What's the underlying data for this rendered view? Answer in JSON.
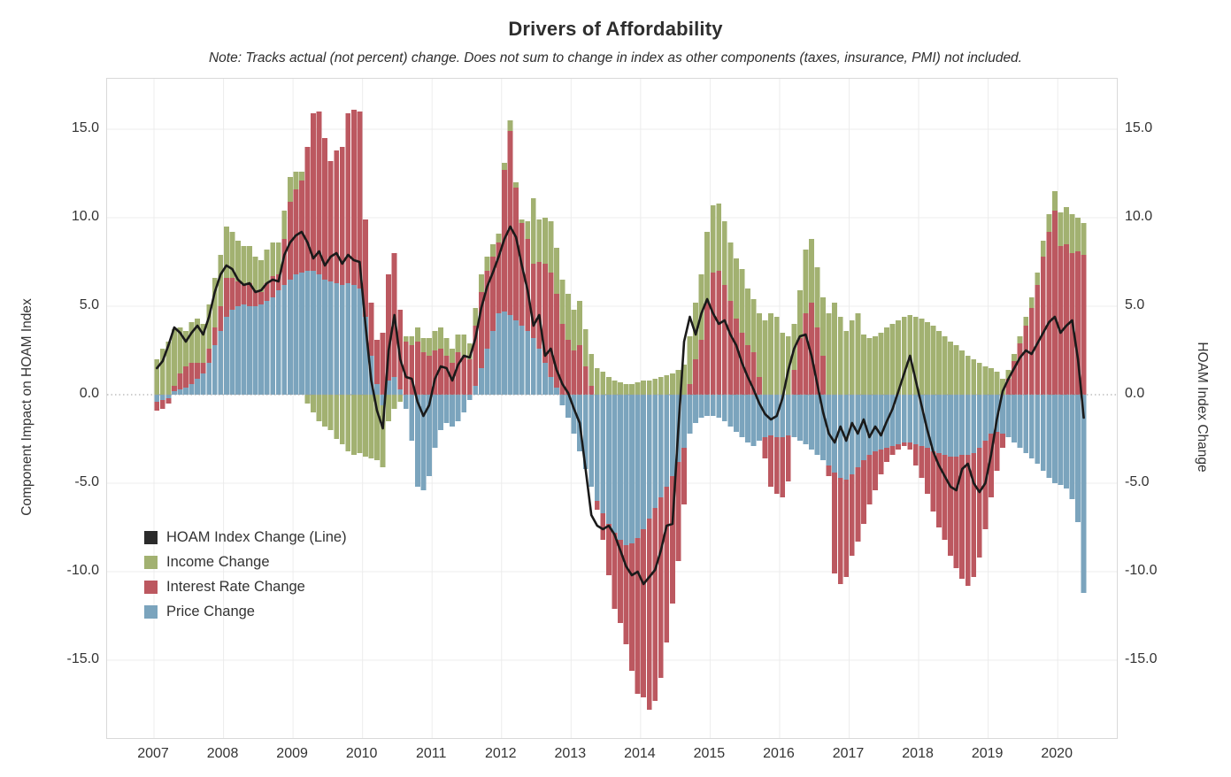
{
  "header": {
    "title": "Drivers of Affordability",
    "note": "Note: Tracks actual (not percent) change. Does not sum to change in index as other components (taxes, insurance, PMI) not included."
  },
  "axes": {
    "left_title": "Component Impact on HOAM Index",
    "right_title": "HOAM Index Change",
    "y_tick_labels": [
      "15.0",
      "10.0",
      "5.0",
      "0.0",
      "-5.0",
      "-10.0",
      "-15.0"
    ],
    "y_tick_values": [
      15,
      10,
      5,
      0,
      -5,
      -10,
      -15
    ],
    "x_year_labels": [
      "2007",
      "2008",
      "2009",
      "2010",
      "2011",
      "2012",
      "2013",
      "2014",
      "2015",
      "2016",
      "2017",
      "2018",
      "2019",
      "2020"
    ]
  },
  "legend": {
    "items": [
      {
        "label": "HOAM Index Change (Line)",
        "color": "#2b2b2b"
      },
      {
        "label": "Income Change",
        "color": "#a2b171"
      },
      {
        "label": "Interest Rate Change",
        "color": "#bc5860"
      },
      {
        "label": "Price Change",
        "color": "#7ba4bd"
      }
    ]
  },
  "chart_data": {
    "type": "bar",
    "subtype": "stacked-bars-with-line",
    "x_monthly_start": "2007-01",
    "x_monthly_end": "2020-05",
    "ylim": [
      -19.6,
      17.8
    ],
    "grid": true,
    "legend_position": "inside-left",
    "stack_order_from_zero": [
      "price",
      "interest",
      "income"
    ],
    "series": [
      {
        "name": "Income Change",
        "key": "income",
        "color": "#a2b171",
        "values": [
          2.0,
          2.6,
          3.0,
          3.2,
          2.6,
          2.0,
          2.3,
          2.5,
          2.2,
          2.5,
          2.8,
          2.9,
          2.9,
          2.6,
          2.3,
          2.2,
          2.1,
          1.9,
          1.8,
          1.9,
          1.9,
          1.8,
          1.6,
          1.4,
          1.0,
          0.5,
          -0.5,
          -1.0,
          -1.5,
          -1.8,
          -2.0,
          -2.5,
          -2.8,
          -3.2,
          -3.4,
          -3.3,
          -3.5,
          -3.6,
          -3.7,
          -3.5,
          -1.5,
          -0.8,
          -0.4,
          0.3,
          0.5,
          0.8,
          0.8,
          1.0,
          1.1,
          1.2,
          1.0,
          0.8,
          1.0,
          1.2,
          0.9,
          1.0,
          1.0,
          0.8,
          0.7,
          0.5,
          0.4,
          0.6,
          0.3,
          0.2,
          1.0,
          3.7,
          2.4,
          2.6,
          2.9,
          2.6,
          2.5,
          2.6,
          2.3,
          2.5,
          2.1,
          1.8,
          1.5,
          1.3,
          1.0,
          0.8,
          0.7,
          0.6,
          0.6,
          0.7,
          0.8,
          0.8,
          0.9,
          1.0,
          1.1,
          1.2,
          1.4,
          1.7,
          2.7,
          3.2,
          3.7,
          4.0,
          3.8,
          3.8,
          3.6,
          3.3,
          3.4,
          3.6,
          3.2,
          3.0,
          3.6,
          4.2,
          4.6,
          4.4,
          3.5,
          3.3,
          2.6,
          2.7,
          3.6,
          3.6,
          3.4,
          3.3,
          4.6,
          5.2,
          4.4,
          3.6,
          4.2,
          4.6,
          3.4,
          3.2,
          3.3,
          3.5,
          3.8,
          4.0,
          4.2,
          4.4,
          4.5,
          4.4,
          4.3,
          4.1,
          3.9,
          3.6,
          3.3,
          3.0,
          2.8,
          2.5,
          2.2,
          2.0,
          1.8,
          1.6,
          1.5,
          1.3,
          0.9,
          0.5,
          0.4,
          0.4,
          0.5,
          0.6,
          0.7,
          0.9,
          1.0,
          1.1,
          1.9,
          2.1,
          2.2,
          1.9,
          1.8
        ]
      },
      {
        "name": "Interest Rate Change",
        "key": "interest",
        "color": "#bc5860",
        "values": [
          -0.5,
          -0.5,
          -0.3,
          0.3,
          0.9,
          1.2,
          1.2,
          0.9,
          0.6,
          0.8,
          1.0,
          1.4,
          2.2,
          1.8,
          1.4,
          1.1,
          1.3,
          0.9,
          0.7,
          1.0,
          1.2,
          0.9,
          2.6,
          4.4,
          4.8,
          5.2,
          7.0,
          8.9,
          9.2,
          8.0,
          6.8,
          7.5,
          7.8,
          9.6,
          9.9,
          10.0,
          5.5,
          3.0,
          2.5,
          3.5,
          6.0,
          7.0,
          4.5,
          3.0,
          2.8,
          3.0,
          2.4,
          2.2,
          2.5,
          2.6,
          2.2,
          1.8,
          2.4,
          2.2,
          2.0,
          3.4,
          4.3,
          4.4,
          4.2,
          4.0,
          8.0,
          10.4,
          7.5,
          5.8,
          5.2,
          4.2,
          4.9,
          5.6,
          5.9,
          5.3,
          4.0,
          3.1,
          2.5,
          2.8,
          1.6,
          0.5,
          -0.5,
          -1.5,
          -2.9,
          -4.3,
          -4.7,
          -5.6,
          -7.2,
          -8.8,
          -9.5,
          -10.8,
          -10.9,
          -10.2,
          -8.8,
          -7.2,
          -5.6,
          -3.2,
          0.6,
          2.0,
          3.1,
          5.2,
          6.9,
          7.0,
          6.2,
          5.3,
          4.3,
          3.5,
          2.8,
          2.4,
          1.0,
          -1.2,
          -2.9,
          -3.2,
          -3.4,
          -2.6,
          1.4,
          3.2,
          4.6,
          5.2,
          3.8,
          2.2,
          -0.6,
          -5.7,
          -6.0,
          -5.5,
          -4.6,
          -4.2,
          -3.6,
          -2.8,
          -2.2,
          -1.4,
          -0.8,
          -0.5,
          -0.3,
          -0.2,
          -0.4,
          -1.2,
          -1.8,
          -2.6,
          -3.4,
          -4.2,
          -4.8,
          -5.6,
          -6.3,
          -7.0,
          -7.4,
          -7.0,
          -6.2,
          -5.0,
          -3.6,
          -2.2,
          -0.8,
          0.9,
          1.9,
          2.9,
          3.9,
          4.9,
          6.2,
          7.8,
          9.2,
          10.4,
          8.4,
          8.5,
          8.0,
          8.1,
          7.9
        ]
      },
      {
        "name": "Price Change",
        "key": "price",
        "color": "#7ba4bd",
        "values": [
          -0.4,
          -0.3,
          -0.2,
          0.2,
          0.3,
          0.4,
          0.6,
          0.9,
          1.2,
          1.8,
          2.8,
          3.6,
          4.4,
          4.8,
          5.0,
          5.1,
          5.0,
          5.0,
          5.1,
          5.3,
          5.5,
          5.9,
          6.2,
          6.5,
          6.8,
          6.9,
          7.0,
          7.0,
          6.8,
          6.5,
          6.4,
          6.3,
          6.2,
          6.3,
          6.2,
          6.0,
          4.4,
          2.2,
          0.6,
          -0.6,
          0.8,
          1.0,
          0.3,
          -0.8,
          -2.6,
          -5.2,
          -5.4,
          -4.6,
          -3.0,
          -2.0,
          -1.6,
          -1.8,
          -1.5,
          -1.0,
          -0.3,
          0.5,
          1.5,
          2.6,
          3.6,
          4.6,
          4.7,
          4.5,
          4.2,
          3.9,
          3.6,
          3.2,
          2.6,
          1.8,
          1.0,
          0.4,
          -0.6,
          -1.3,
          -2.2,
          -3.2,
          -4.2,
          -5.2,
          -6.0,
          -6.7,
          -7.3,
          -7.8,
          -8.2,
          -8.5,
          -8.4,
          -8.1,
          -7.6,
          -7.0,
          -6.4,
          -5.8,
          -5.2,
          -4.6,
          -3.8,
          -3.0,
          -2.2,
          -1.6,
          -1.3,
          -1.2,
          -1.2,
          -1.3,
          -1.5,
          -1.8,
          -2.1,
          -2.4,
          -2.7,
          -2.9,
          -2.6,
          -2.4,
          -2.3,
          -2.4,
          -2.4,
          -2.3,
          -2.4,
          -2.6,
          -2.8,
          -3.1,
          -3.4,
          -3.7,
          -4.0,
          -4.4,
          -4.7,
          -4.8,
          -4.5,
          -4.1,
          -3.7,
          -3.4,
          -3.2,
          -3.1,
          -3.0,
          -2.9,
          -2.8,
          -2.7,
          -2.7,
          -2.8,
          -2.9,
          -3.0,
          -3.2,
          -3.3,
          -3.4,
          -3.5,
          -3.5,
          -3.4,
          -3.4,
          -3.3,
          -3.0,
          -2.6,
          -2.2,
          -2.1,
          -2.2,
          -2.4,
          -2.7,
          -3.0,
          -3.3,
          -3.6,
          -3.9,
          -4.3,
          -4.7,
          -5.0,
          -5.1,
          -5.3,
          -5.9,
          -7.2,
          -11.2
        ]
      },
      {
        "name": "HOAM Index Change (Line)",
        "key": "line",
        "color": "#1a1a1a",
        "values": [
          1.5,
          1.9,
          2.8,
          3.8,
          3.5,
          3.0,
          3.5,
          3.9,
          3.4,
          4.4,
          5.8,
          6.8,
          7.3,
          7.1,
          6.5,
          6.2,
          6.3,
          5.8,
          5.9,
          6.3,
          6.5,
          6.4,
          7.9,
          8.6,
          9.0,
          9.2,
          8.6,
          7.7,
          8.1,
          7.3,
          7.8,
          8.0,
          7.4,
          7.9,
          7.6,
          7.5,
          4.0,
          0.8,
          -0.9,
          -1.9,
          2.5,
          4.5,
          2.0,
          1.0,
          0.9,
          -0.4,
          -1.2,
          -0.6,
          0.9,
          1.6,
          1.5,
          0.8,
          1.7,
          2.2,
          2.1,
          3.2,
          4.9,
          6.1,
          6.9,
          7.8,
          8.8,
          9.5,
          8.9,
          7.3,
          5.9,
          3.9,
          4.5,
          2.2,
          2.6,
          1.4,
          0.6,
          0.1,
          -0.8,
          -1.6,
          -4.2,
          -6.8,
          -7.4,
          -7.6,
          -7.4,
          -7.9,
          -8.8,
          -9.7,
          -10.2,
          -10.0,
          -10.7,
          -10.3,
          -9.9,
          -8.8,
          -7.4,
          -7.3,
          -2.0,
          3.0,
          4.4,
          3.4,
          4.6,
          5.4,
          4.6,
          4.0,
          4.2,
          3.4,
          2.8,
          1.8,
          1.0,
          0.3,
          -0.5,
          -1.1,
          -1.4,
          -1.2,
          -0.2,
          1.4,
          2.6,
          3.3,
          3.4,
          2.2,
          0.6,
          -1.0,
          -2.2,
          -2.7,
          -1.8,
          -2.6,
          -1.6,
          -2.2,
          -1.4,
          -2.4,
          -1.8,
          -2.3,
          -1.5,
          -0.8,
          0.2,
          1.2,
          2.2,
          0.8,
          -0.6,
          -2.0,
          -3.2,
          -4.0,
          -4.6,
          -5.2,
          -5.4,
          -4.2,
          -3.9,
          -5.0,
          -5.5,
          -5.0,
          -3.4,
          -1.4,
          0.2,
          0.9,
          1.5,
          2.1,
          2.5,
          2.3,
          2.9,
          3.5,
          4.1,
          4.4,
          3.5,
          3.9,
          4.2,
          2.0,
          -1.3
        ]
      }
    ]
  },
  "style": {
    "grid_color": "#ececec",
    "zero_line_color": "#9e9e9e",
    "plot_border_color": "#d9d9d9",
    "background": "#ffffff"
  }
}
